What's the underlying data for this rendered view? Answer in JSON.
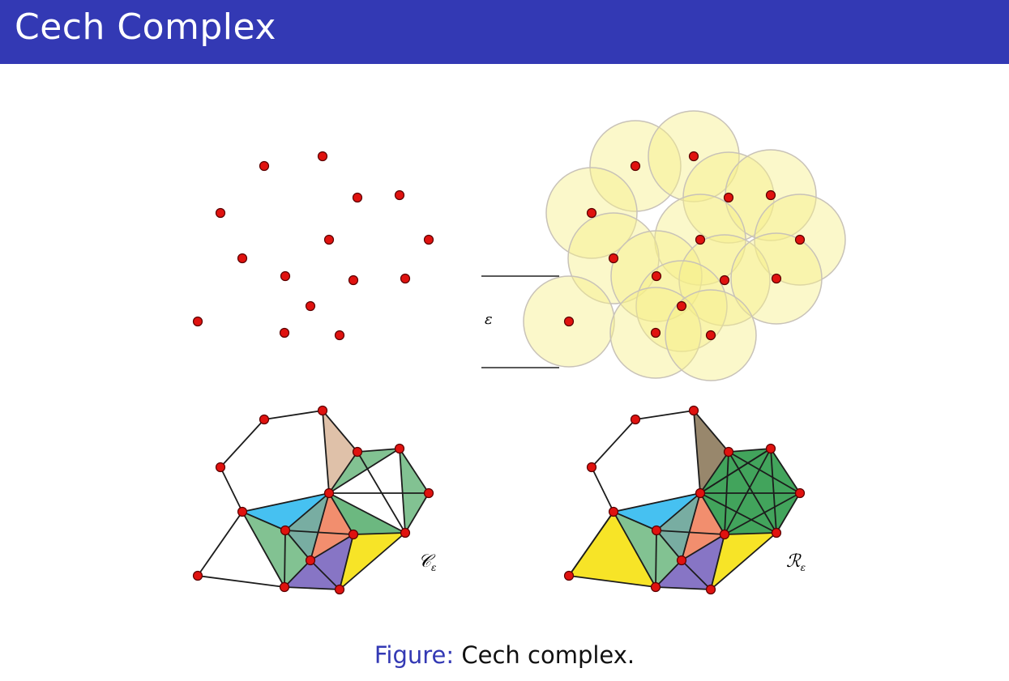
{
  "slide": {
    "title": "Cech Complex",
    "caption_label": "Figure:",
    "caption_text": "Cech complex."
  },
  "figure": {
    "epsilon_label": "ε",
    "cech_label": "𝒞",
    "cech_subscript": "ε",
    "rips_label": "ℛ",
    "rips_subscript": "ε"
  },
  "colors": {
    "title_bar": "#3339b4",
    "point_fill": "#e0120f",
    "ball_fill": "#f7ef8a",
    "blue_simplex": "#26b6ee",
    "green_simplex": "#2e9a4a",
    "yellow_simplex": "#f7e31b",
    "purple_simplex": "#7a66bf",
    "salmon_simplex": "#f07a55",
    "tan_simplex": "#c99870"
  }
}
